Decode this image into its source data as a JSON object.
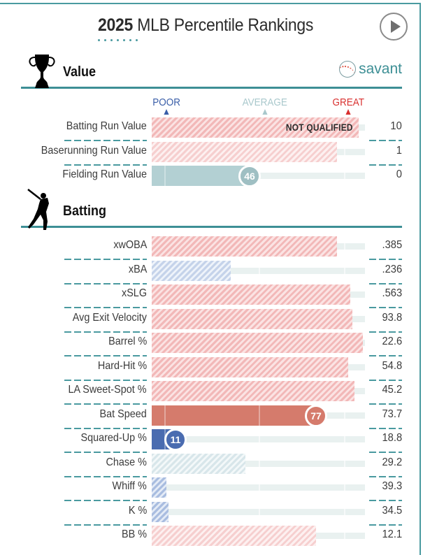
{
  "header": {
    "year": "2025",
    "title": "MLB Percentile Rankings",
    "play_button_icon": "play-circle-icon"
  },
  "colors": {
    "accent": "#3d8f95",
    "poor": "#3a5ea8",
    "average": "#a9c8cc",
    "great": "#d9302f",
    "bar_high": "#d57b6c",
    "bar_low": "#4a6cb0",
    "bar_mid": "#b3d0d3"
  },
  "legend": {
    "poor": "POOR",
    "average": "AVERAGE",
    "great": "GREAT"
  },
  "sections": [
    {
      "title": "Value",
      "icon": "trophy-icon",
      "brand": "savant",
      "brand_icon": "baseball-icon",
      "rows": [
        {
          "label": "Batting Run Value",
          "value": "10",
          "percentile": 97,
          "qualified": false,
          "note": "NOT QUALIFIED",
          "style": "hatch-red"
        },
        {
          "label": "Baserunning Run Value",
          "value": "1",
          "percentile": 87,
          "qualified": false,
          "style": "hatch-red-light"
        },
        {
          "label": "Fielding Run Value",
          "value": "0",
          "percentile": 46,
          "qualified": true,
          "style": "solid-mid"
        }
      ]
    },
    {
      "title": "Batting",
      "icon": "batter-icon",
      "rows": [
        {
          "label": "xwOBA",
          "value": ".385",
          "percentile": 87,
          "qualified": false,
          "style": "hatch-red"
        },
        {
          "label": "xBA",
          "value": ".236",
          "percentile": 37,
          "qualified": false,
          "style": "hatch-blue"
        },
        {
          "label": "xSLG",
          "value": ".563",
          "percentile": 93,
          "qualified": false,
          "style": "hatch-red"
        },
        {
          "label": "Avg Exit Velocity",
          "value": "93.8",
          "percentile": 94,
          "qualified": false,
          "style": "hatch-red"
        },
        {
          "label": "Barrel %",
          "value": "22.6",
          "percentile": 99,
          "qualified": false,
          "style": "hatch-red"
        },
        {
          "label": "Hard-Hit %",
          "value": "54.8",
          "percentile": 92,
          "qualified": false,
          "style": "hatch-red"
        },
        {
          "label": "LA Sweet-Spot %",
          "value": "45.2",
          "percentile": 95,
          "qualified": false,
          "style": "hatch-red"
        },
        {
          "label": "Bat Speed",
          "value": "73.7",
          "percentile": 77,
          "qualified": true,
          "style": "solid-high"
        },
        {
          "label": "Squared-Up %",
          "value": "18.8",
          "percentile": 11,
          "qualified": true,
          "style": "solid-low"
        },
        {
          "label": "Chase %",
          "value": "29.2",
          "percentile": 44,
          "qualified": false,
          "style": "hatch-gray"
        },
        {
          "label": "Whiff %",
          "value": "39.3",
          "percentile": 7,
          "qualified": false,
          "style": "hatch-blue-mid"
        },
        {
          "label": "K %",
          "value": "34.5",
          "percentile": 8,
          "qualified": false,
          "style": "hatch-blue-mid"
        },
        {
          "label": "BB %",
          "value": "12.1",
          "percentile": 77,
          "qualified": false,
          "style": "hatch-red-light"
        }
      ]
    }
  ]
}
